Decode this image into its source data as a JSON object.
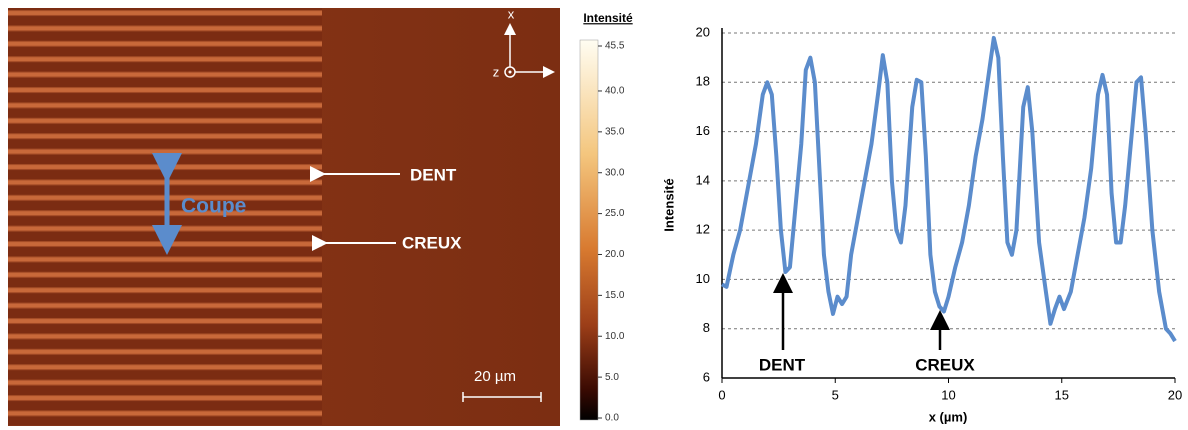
{
  "chart_data": [
    {
      "type": "image",
      "colorbar": {
        "title": "Intensité",
        "lim": [
          0,
          45.5
        ],
        "ticks": [
          {
            "value": 0,
            "label": "0.0"
          },
          {
            "value": 5,
            "label": "5.0"
          },
          {
            "value": 10,
            "label": "10.0"
          },
          {
            "value": 15,
            "label": "15.0"
          },
          {
            "value": 20,
            "label": "20.0"
          },
          {
            "value": 25,
            "label": "25.0"
          },
          {
            "value": 30,
            "label": "30.0"
          },
          {
            "value": 35,
            "label": "35.0"
          },
          {
            "value": 40,
            "label": "40.0"
          },
          {
            "value": 45.5,
            "label": "45.5"
          }
        ]
      },
      "annotations": [
        "DENT",
        "CREUX",
        "Coupe"
      ],
      "scale_bar": "20 µm",
      "axes_labels": [
        "x",
        "y",
        "z"
      ]
    },
    {
      "type": "line",
      "x": [
        0,
        0.2,
        0.5,
        0.8,
        1.0,
        1.3,
        1.5,
        1.8,
        2.0,
        2.2,
        2.4,
        2.6,
        2.8,
        3.0,
        3.2,
        3.5,
        3.7,
        3.9,
        4.1,
        4.3,
        4.5,
        4.7,
        4.9,
        5.1,
        5.3,
        5.5,
        5.7,
        6.0,
        6.3,
        6.6,
        6.9,
        7.1,
        7.3,
        7.5,
        7.7,
        7.9,
        8.1,
        8.4,
        8.6,
        8.8,
        9.0,
        9.2,
        9.4,
        9.6,
        9.8,
        10.0,
        10.3,
        10.6,
        10.9,
        11.2,
        11.5,
        11.8,
        12.0,
        12.2,
        12.4,
        12.6,
        12.8,
        13.0,
        13.3,
        13.5,
        13.7,
        14.0,
        14.3,
        14.5,
        14.7,
        14.9,
        15.1,
        15.4,
        15.7,
        16.0,
        16.3,
        16.6,
        16.8,
        17.0,
        17.2,
        17.4,
        17.6,
        17.8,
        18.1,
        18.3,
        18.5,
        18.7,
        19.0,
        19.3,
        19.6,
        19.8,
        20.0
      ],
      "values": [
        9.8,
        9.7,
        11,
        12,
        13,
        14.5,
        15.5,
        17.5,
        18,
        17.5,
        15,
        12,
        10.3,
        10.5,
        12.5,
        15.5,
        18.5,
        19,
        18,
        14.5,
        11,
        9.5,
        8.6,
        9.3,
        9.0,
        9.3,
        11,
        12.5,
        14,
        15.5,
        17.6,
        19.1,
        18,
        14,
        12,
        11.5,
        13,
        17,
        18.1,
        18,
        15,
        11,
        9.5,
        8.9,
        8.7,
        9.3,
        10.5,
        11.5,
        13,
        15,
        16.5,
        18.5,
        19.8,
        19,
        15,
        11.5,
        11,
        12,
        17,
        17.8,
        16,
        11.5,
        9.5,
        8.2,
        8.8,
        9.3,
        8.8,
        9.5,
        11,
        12.5,
        14.5,
        17.5,
        18.3,
        17.5,
        13.5,
        11.5,
        11.5,
        13,
        16,
        18,
        18.2,
        16,
        12,
        9.5,
        8,
        7.8,
        7.5
      ],
      "color": "#5b8ccc",
      "xlim": [
        0,
        20
      ],
      "xticks": [
        0,
        5,
        10,
        15,
        20
      ],
      "ylim": [
        6,
        20
      ],
      "yticks": [
        6,
        8,
        10,
        12,
        14,
        16,
        18,
        20
      ],
      "grid": true,
      "x_label": "x (µm)",
      "y_label": "Intensité",
      "annotations": [
        "DENT",
        "CREUX"
      ]
    }
  ]
}
